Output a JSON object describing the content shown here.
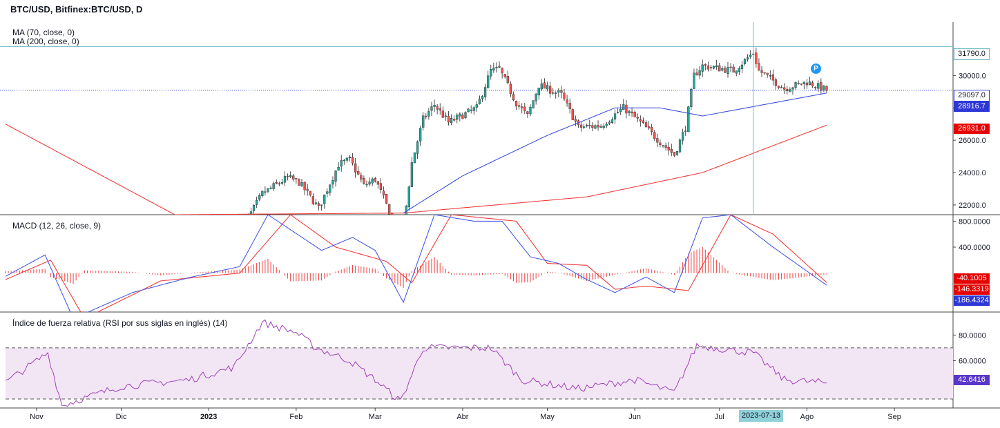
{
  "header": {
    "title": "BTC/USD, Bitfinex:BTC/USD, D"
  },
  "legend": {
    "ma70": "MA (70, close, 0)",
    "ma200": "MA (200, close, 0)",
    "macd": "MACD (12, 26, close, 9)",
    "rsi": "Índice de fuerza relativa (RSI por sus siglas en inglés) (14)"
  },
  "colors": {
    "up": "#26a69a",
    "down": "#ef5350",
    "ma70": "#3f51e0",
    "ma200": "#f23b3b",
    "macd_line": "#4a5ae8",
    "signal_line": "#f23b3b",
    "hist": "#f23b3b",
    "rsi_line": "#a040b8",
    "rsi_band": "#f2e6f5",
    "crosshair": "#6bb9c7"
  },
  "price_tags": {
    "crosshair_price": "31790.0",
    "last_price": "29097.0",
    "ma70": "28916.7",
    "ma200": "26931.0"
  },
  "macd_tags": {
    "histogram": "-40.1005",
    "signal": "-146.3319",
    "macd": "-186.4324"
  },
  "rsi_tags": {
    "rsi": "42.6416"
  },
  "crosshair_date": "2023-07-13",
  "marker_label": "P",
  "chart_data": [
    {
      "type": "candlestick",
      "title": "BTC/USD, Bitfinex:BTC/USD, D",
      "x_ticks": [
        "Nov",
        "Dic",
        "2023",
        "Feb",
        "Mar",
        "Abr",
        "May",
        "Jun",
        "Jul",
        "Ago",
        "Sep"
      ],
      "y_ticks": [
        22000,
        24000,
        26000,
        28000,
        30000
      ],
      "ylim": [
        21400,
        33300
      ],
      "closes_keypoints": [
        {
          "date": "2023-01-12",
          "close": 18800
        },
        {
          "date": "2023-01-14",
          "close": 20900
        },
        {
          "date": "2023-01-20",
          "close": 22700
        },
        {
          "date": "2023-01-29",
          "close": 23700
        },
        {
          "date": "2023-02-02",
          "close": 23400
        },
        {
          "date": "2023-02-09",
          "close": 21800
        },
        {
          "date": "2023-02-16",
          "close": 24500
        },
        {
          "date": "2023-02-20",
          "close": 24800
        },
        {
          "date": "2023-02-25",
          "close": 23200
        },
        {
          "date": "2023-03-01",
          "close": 23600
        },
        {
          "date": "2023-03-09",
          "close": 20400
        },
        {
          "date": "2023-03-11",
          "close": 20600
        },
        {
          "date": "2023-03-14",
          "close": 24600
        },
        {
          "date": "2023-03-18",
          "close": 27300
        },
        {
          "date": "2023-03-22",
          "close": 28200
        },
        {
          "date": "2023-03-27",
          "close": 27100
        },
        {
          "date": "2023-04-06",
          "close": 28000
        },
        {
          "date": "2023-04-11",
          "close": 30300
        },
        {
          "date": "2023-04-14",
          "close": 30400
        },
        {
          "date": "2023-04-20",
          "close": 28300
        },
        {
          "date": "2023-04-24",
          "close": 27500
        },
        {
          "date": "2023-04-28",
          "close": 29400
        },
        {
          "date": "2023-05-06",
          "close": 28800
        },
        {
          "date": "2023-05-12",
          "close": 26800
        },
        {
          "date": "2023-05-20",
          "close": 26900
        },
        {
          "date": "2023-05-28",
          "close": 28000
        },
        {
          "date": "2023-06-03",
          "close": 27100
        },
        {
          "date": "2023-06-10",
          "close": 25900
        },
        {
          "date": "2023-06-15",
          "close": 25100
        },
        {
          "date": "2023-06-19",
          "close": 26800
        },
        {
          "date": "2023-06-22",
          "close": 30000
        },
        {
          "date": "2023-06-25",
          "close": 30600
        },
        {
          "date": "2023-07-06",
          "close": 30300
        },
        {
          "date": "2023-07-13",
          "close": 31400
        },
        {
          "date": "2023-07-15",
          "close": 30300
        },
        {
          "date": "2023-07-24",
          "close": 29200
        },
        {
          "date": "2023-08-01",
          "close": 29600
        },
        {
          "date": "2023-08-08",
          "close": 29097
        }
      ],
      "ma70_keypoints": [
        {
          "date": "2023-03-11",
          "value": 21500
        },
        {
          "date": "2023-04-01",
          "value": 23800
        },
        {
          "date": "2023-05-01",
          "value": 26300
        },
        {
          "date": "2023-05-25",
          "value": 28000
        },
        {
          "date": "2023-06-10",
          "value": 28000
        },
        {
          "date": "2023-06-25",
          "value": 27500
        },
        {
          "date": "2023-08-08",
          "value": 28916.7
        }
      ],
      "ma200_keypoints": [
        {
          "date": "2022-10-21",
          "value": 27000
        },
        {
          "date": "2022-12-20",
          "value": 21400
        },
        {
          "date": "2023-03-11",
          "value": 21500
        },
        {
          "date": "2023-05-15",
          "value": 22500
        },
        {
          "date": "2023-06-25",
          "value": 24000
        },
        {
          "date": "2023-08-08",
          "value": 26931.0
        }
      ]
    },
    {
      "type": "line",
      "title": "MACD (12, 26, close, 9)",
      "y_ticks": [
        400,
        800
      ],
      "ylim": [
        -600,
        900
      ],
      "macd_keypoints": [
        {
          "date": "2022-10-21",
          "value": -50
        },
        {
          "date": "2022-11-04",
          "value": 280
        },
        {
          "date": "2022-11-14",
          "value": -700
        },
        {
          "date": "2022-12-05",
          "value": -300
        },
        {
          "date": "2022-12-25",
          "value": -70
        },
        {
          "date": "2023-01-12",
          "value": 100
        },
        {
          "date": "2023-01-22",
          "value": 900
        },
        {
          "date": "2023-02-10",
          "value": 350
        },
        {
          "date": "2023-02-21",
          "value": 550
        },
        {
          "date": "2023-03-01",
          "value": 350
        },
        {
          "date": "2023-03-11",
          "value": -450
        },
        {
          "date": "2023-03-22",
          "value": 900
        },
        {
          "date": "2023-04-05",
          "value": 800
        },
        {
          "date": "2023-04-15",
          "value": 800
        },
        {
          "date": "2023-04-25",
          "value": 250
        },
        {
          "date": "2023-05-05",
          "value": 150
        },
        {
          "date": "2023-05-15",
          "value": -100
        },
        {
          "date": "2023-05-25",
          "value": -300
        },
        {
          "date": "2023-06-05",
          "value": -60
        },
        {
          "date": "2023-06-15",
          "value": -300
        },
        {
          "date": "2023-06-25",
          "value": 850
        },
        {
          "date": "2023-07-05",
          "value": 900
        },
        {
          "date": "2023-07-20",
          "value": 400
        },
        {
          "date": "2023-08-08",
          "value": -186.4324
        }
      ],
      "signal_keypoints": [
        {
          "date": "2022-10-21",
          "value": -100
        },
        {
          "date": "2022-11-06",
          "value": 200
        },
        {
          "date": "2022-11-18",
          "value": -700
        },
        {
          "date": "2022-12-15",
          "value": -120
        },
        {
          "date": "2023-01-12",
          "value": 0
        },
        {
          "date": "2023-01-30",
          "value": 900
        },
        {
          "date": "2023-02-15",
          "value": 400
        },
        {
          "date": "2023-03-05",
          "value": 180
        },
        {
          "date": "2023-03-14",
          "value": -150
        },
        {
          "date": "2023-03-28",
          "value": 900
        },
        {
          "date": "2023-04-20",
          "value": 800
        },
        {
          "date": "2023-05-01",
          "value": 150
        },
        {
          "date": "2023-05-15",
          "value": 120
        },
        {
          "date": "2023-05-25",
          "value": -250
        },
        {
          "date": "2023-06-05",
          "value": -200
        },
        {
          "date": "2023-06-20",
          "value": -270
        },
        {
          "date": "2023-07-05",
          "value": 900
        },
        {
          "date": "2023-07-20",
          "value": 600
        },
        {
          "date": "2023-08-08",
          "value": -146.3319
        }
      ],
      "histogram_last": -40.1005
    },
    {
      "type": "line",
      "title": "Índice de fuerza relativa (RSI por sus siglas en inglés) (14)",
      "y_ticks": [
        60,
        80
      ],
      "ylim": [
        23,
        98
      ],
      "band": [
        30,
        70
      ],
      "rsi_keypoints": [
        {
          "date": "2022-10-21",
          "value": 43
        },
        {
          "date": "2022-11-05",
          "value": 66
        },
        {
          "date": "2022-11-10",
          "value": 25
        },
        {
          "date": "2022-12-01",
          "value": 40
        },
        {
          "date": "2022-12-25",
          "value": 45
        },
        {
          "date": "2023-01-10",
          "value": 55
        },
        {
          "date": "2023-01-20",
          "value": 90
        },
        {
          "date": "2023-02-01",
          "value": 82
        },
        {
          "date": "2023-02-08",
          "value": 70
        },
        {
          "date": "2023-02-20",
          "value": 60
        },
        {
          "date": "2023-03-01",
          "value": 45
        },
        {
          "date": "2023-03-10",
          "value": 28
        },
        {
          "date": "2023-03-18",
          "value": 70
        },
        {
          "date": "2023-04-11",
          "value": 70
        },
        {
          "date": "2023-04-22",
          "value": 45
        },
        {
          "date": "2023-05-12",
          "value": 38
        },
        {
          "date": "2023-06-01",
          "value": 45
        },
        {
          "date": "2023-06-15",
          "value": 35
        },
        {
          "date": "2023-06-23",
          "value": 72
        },
        {
          "date": "2023-07-13",
          "value": 66
        },
        {
          "date": "2023-07-24",
          "value": 45
        },
        {
          "date": "2023-08-08",
          "value": 42.6416
        }
      ]
    }
  ]
}
